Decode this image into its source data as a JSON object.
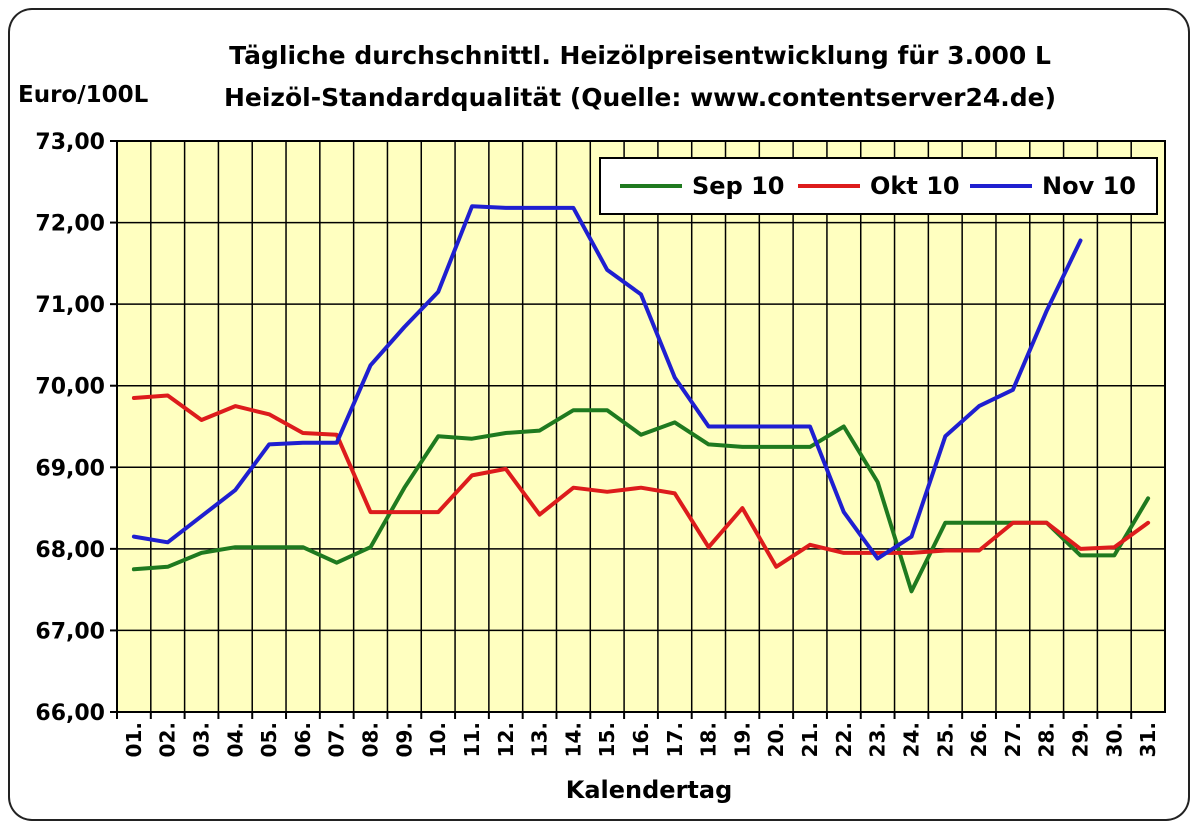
{
  "chart_data": {
    "type": "line",
    "title": "Tägliche durchschnittl. Heizölpreisentwicklung für 3.000 L",
    "subtitle": "Heizöl-Standardqualität (Quelle: www.contentserver24.de)",
    "ylabel": "Euro/100L",
    "xlabel": "Kalendertag",
    "ylim": [
      66,
      73
    ],
    "yticks": [
      "66,00",
      "67,00",
      "68,00",
      "69,00",
      "70,00",
      "71,00",
      "72,00",
      "73,00"
    ],
    "categories": [
      "01.",
      "02.",
      "03.",
      "04.",
      "05.",
      "06.",
      "07.",
      "08.",
      "09.",
      "10.",
      "11.",
      "12.",
      "13.",
      "14.",
      "15.",
      "16.",
      "17.",
      "18.",
      "19.",
      "20.",
      "21.",
      "22.",
      "23.",
      "24.",
      "25.",
      "26.",
      "27.",
      "28.",
      "29.",
      "30.",
      "31."
    ],
    "grid": true,
    "legend_position": "top-right",
    "background_color": "#ffffc0",
    "series": [
      {
        "name": "Sep 10",
        "color": "#1f7a1f",
        "values": [
          67.75,
          67.78,
          67.95,
          68.02,
          68.02,
          68.02,
          67.83,
          68.02,
          68.75,
          69.38,
          69.35,
          69.42,
          69.45,
          69.7,
          69.7,
          69.4,
          69.55,
          69.28,
          69.25,
          69.25,
          69.25,
          69.5,
          68.82,
          67.48,
          68.32,
          68.32,
          68.32,
          68.32,
          67.92,
          67.92,
          68.62
        ]
      },
      {
        "name": "Okt 10",
        "color": "#dd1c1c",
        "values": [
          69.85,
          69.88,
          69.58,
          69.75,
          69.65,
          69.42,
          69.4,
          68.45,
          68.45,
          68.45,
          68.9,
          68.98,
          68.42,
          68.75,
          68.7,
          68.75,
          68.68,
          68.02,
          68.5,
          67.78,
          68.05,
          67.95,
          67.95,
          67.95,
          67.98,
          67.98,
          68.32,
          68.32,
          68.0,
          68.02,
          68.32
        ]
      },
      {
        "name": "Nov 10",
        "color": "#1f1fd0",
        "values": [
          68.15,
          68.08,
          68.4,
          68.72,
          69.28,
          69.3,
          69.3,
          70.25,
          70.72,
          71.15,
          72.2,
          72.18,
          72.18,
          72.18,
          71.42,
          71.12,
          70.1,
          69.5,
          69.5,
          69.5,
          69.5,
          68.45,
          67.88,
          68.15,
          69.38,
          69.75,
          69.95,
          70.92,
          71.78,
          null,
          null
        ]
      }
    ]
  }
}
